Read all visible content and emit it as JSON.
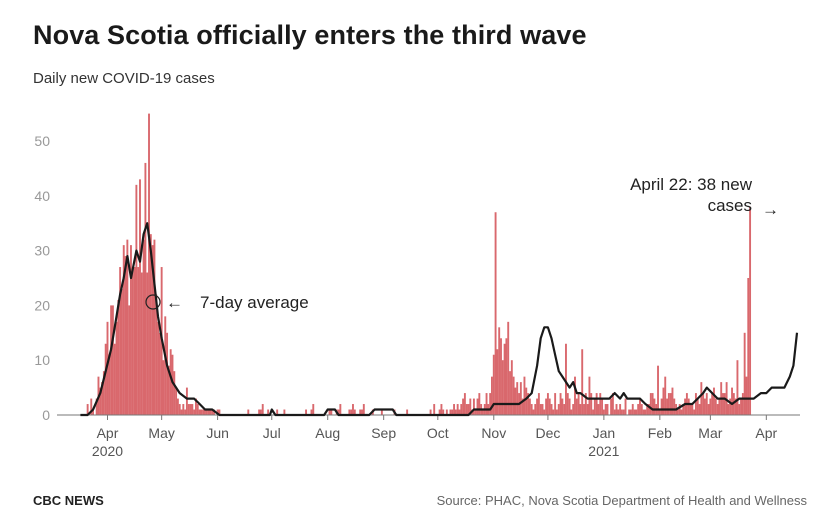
{
  "title": "Nova Scotia officially enters the third wave",
  "subtitle": "Daily new COVID-19 cases",
  "footer": {
    "brand": "CBC NEWS",
    "source": "Source: PHAC, Nova Scotia Department of Health and Wellness"
  },
  "colors": {
    "bar": "#d9686d",
    "line": "#1a1a1a"
  },
  "chart_data": {
    "type": "bar",
    "title": "Nova Scotia officially enters the third wave",
    "subtitle": "Daily new COVID-19 cases",
    "ylim": [
      0,
      55
    ],
    "yticks": [
      0,
      10,
      20,
      30,
      40,
      50
    ],
    "grid": false,
    "x_range_days": [
      -20,
      402
    ],
    "month_ticks": [
      {
        "label": "Apr",
        "day": 0,
        "year": "2020"
      },
      {
        "label": "May",
        "day": 30
      },
      {
        "label": "Jun",
        "day": 61
      },
      {
        "label": "Jul",
        "day": 91
      },
      {
        "label": "Aug",
        "day": 122
      },
      {
        "label": "Sep",
        "day": 153
      },
      {
        "label": "Oct",
        "day": 183
      },
      {
        "label": "Nov",
        "day": 214
      },
      {
        "label": "Dec",
        "day": 244
      },
      {
        "label": "Jan",
        "day": 275,
        "year": "2021"
      },
      {
        "label": "Feb",
        "day": 306
      },
      {
        "label": "Mar",
        "day": 334
      },
      {
        "label": "Apr",
        "day": 365
      }
    ],
    "series": [
      {
        "name": "Daily new cases",
        "kind": "bar",
        "start_day": -15,
        "values": [
          0,
          0,
          0,
          0,
          2,
          0,
          3,
          1,
          0,
          3,
          7,
          5,
          6,
          8,
          13,
          17,
          11,
          20,
          20,
          13,
          17,
          21,
          27,
          23,
          31,
          29,
          32,
          20,
          31,
          27,
          27,
          42,
          27,
          43,
          26,
          32,
          46,
          26,
          55,
          33,
          31,
          32,
          22,
          17,
          15,
          27,
          10,
          18,
          15,
          9,
          12,
          11,
          8,
          5,
          3,
          2,
          1,
          2,
          1,
          5,
          2,
          2,
          2,
          1,
          3,
          2,
          1,
          1,
          1,
          1,
          1,
          1,
          1,
          1,
          1,
          0,
          1,
          1,
          0,
          0,
          0,
          0,
          0,
          0,
          0,
          0,
          0,
          0,
          0,
          0,
          0,
          0,
          0,
          1,
          0,
          0,
          0,
          0,
          0,
          1,
          1,
          2,
          0,
          0,
          1,
          0,
          0,
          0,
          0,
          1,
          0,
          0,
          0,
          1,
          0,
          0,
          0,
          0,
          0,
          0,
          0,
          0,
          0,
          0,
          0,
          1,
          0,
          0,
          1,
          2,
          0,
          0,
          0,
          0,
          0,
          0,
          0,
          0,
          1,
          1,
          0,
          0,
          1,
          1,
          2,
          0,
          0,
          0,
          0,
          1,
          1,
          2,
          1,
          0,
          0,
          1,
          1,
          2,
          0,
          0,
          0,
          0,
          1,
          0,
          0,
          0,
          0,
          1,
          0,
          0,
          0,
          0,
          0,
          0,
          1,
          0,
          0,
          0,
          0,
          0,
          0,
          1,
          0,
          0,
          0,
          0,
          0,
          0,
          0,
          0,
          0,
          0,
          0,
          0,
          1,
          0,
          2,
          0,
          0,
          1,
          2,
          1,
          0,
          1,
          0,
          1,
          1,
          2,
          1,
          2,
          1,
          2,
          3,
          4,
          2,
          2,
          3,
          1,
          3,
          1,
          3,
          4,
          2,
          1,
          2,
          4,
          2,
          4,
          7,
          11,
          37,
          12,
          16,
          14,
          10,
          13,
          14,
          17,
          8,
          10,
          7,
          5,
          6,
          4,
          6,
          3,
          7,
          5,
          4,
          3,
          2,
          1,
          2,
          3,
          4,
          2,
          2,
          1,
          3,
          4,
          3,
          2,
          1,
          4,
          1,
          2,
          4,
          3,
          2,
          13,
          4,
          3,
          1,
          2,
          7,
          3,
          4,
          2,
          12,
          2,
          4,
          2,
          7,
          4,
          1,
          3,
          4,
          2,
          4,
          3,
          1,
          2,
          2,
          0,
          3,
          4,
          1,
          2,
          1,
          2,
          1,
          1,
          3,
          0,
          1,
          1,
          2,
          1,
          1,
          2,
          3,
          2,
          1,
          1,
          2,
          2,
          4,
          4,
          3,
          2,
          9,
          1,
          3,
          5,
          7,
          3,
          4,
          4,
          5,
          3,
          2,
          1,
          2,
          1,
          2,
          3,
          4,
          3,
          2,
          2,
          1,
          4,
          3,
          2,
          6,
          4,
          3,
          4,
          2,
          3,
          4,
          5,
          3,
          2,
          3,
          6,
          4,
          4,
          6,
          2,
          3,
          5,
          4,
          3,
          10,
          2,
          3,
          4,
          15,
          7,
          25,
          38
        ]
      },
      {
        "name": "7-day average",
        "kind": "line",
        "points": [
          [
            -15,
            0
          ],
          [
            -11,
            0
          ],
          [
            -8,
            1
          ],
          [
            -4,
            4
          ],
          [
            -1,
            8
          ],
          [
            2,
            12
          ],
          [
            5,
            18
          ],
          [
            7,
            22
          ],
          [
            9,
            25
          ],
          [
            11,
            29
          ],
          [
            13,
            25
          ],
          [
            16,
            30
          ],
          [
            18,
            28
          ],
          [
            20,
            33
          ],
          [
            22,
            35
          ],
          [
            24,
            30
          ],
          [
            26,
            24
          ],
          [
            28,
            18
          ],
          [
            30,
            14
          ],
          [
            33,
            9
          ],
          [
            36,
            6
          ],
          [
            40,
            4
          ],
          [
            44,
            3
          ],
          [
            48,
            3
          ],
          [
            51,
            2
          ],
          [
            54,
            1
          ],
          [
            58,
            1
          ],
          [
            62,
            0
          ],
          [
            66,
            0
          ],
          [
            90,
            0
          ],
          [
            91,
            1
          ],
          [
            93,
            0
          ],
          [
            120,
            0
          ],
          [
            122,
            1
          ],
          [
            126,
            1
          ],
          [
            128,
            0
          ],
          [
            145,
            0
          ],
          [
            148,
            1
          ],
          [
            158,
            1
          ],
          [
            160,
            0
          ],
          [
            190,
            0
          ],
          [
            200,
            0
          ],
          [
            203,
            1
          ],
          [
            208,
            1
          ],
          [
            212,
            1
          ],
          [
            214,
            2
          ],
          [
            220,
            2
          ],
          [
            225,
            2
          ],
          [
            228,
            2
          ],
          [
            232,
            3
          ],
          [
            235,
            4
          ],
          [
            238,
            9
          ],
          [
            240,
            14
          ],
          [
            242,
            16
          ],
          [
            244,
            16
          ],
          [
            246,
            14
          ],
          [
            248,
            11
          ],
          [
            250,
            8
          ],
          [
            252,
            7
          ],
          [
            254,
            6
          ],
          [
            256,
            5
          ],
          [
            258,
            6
          ],
          [
            260,
            4
          ],
          [
            262,
            4
          ],
          [
            266,
            3
          ],
          [
            270,
            3
          ],
          [
            274,
            3
          ],
          [
            278,
            3
          ],
          [
            281,
            4
          ],
          [
            284,
            3
          ],
          [
            286,
            4
          ],
          [
            288,
            3
          ],
          [
            292,
            3
          ],
          [
            295,
            3
          ],
          [
            298,
            2
          ],
          [
            302,
            1
          ],
          [
            305,
            1
          ],
          [
            310,
            1
          ],
          [
            315,
            1
          ],
          [
            320,
            2
          ],
          [
            324,
            2
          ],
          [
            327,
            3
          ],
          [
            330,
            4
          ],
          [
            332,
            5
          ],
          [
            335,
            4
          ],
          [
            338,
            3
          ],
          [
            342,
            3
          ],
          [
            346,
            2
          ],
          [
            350,
            3
          ],
          [
            354,
            3
          ],
          [
            358,
            3
          ],
          [
            362,
            4
          ],
          [
            365,
            4
          ],
          [
            368,
            5
          ],
          [
            372,
            5
          ],
          [
            375,
            5
          ],
          [
            378,
            7
          ],
          [
            380,
            9
          ],
          [
            382,
            15
          ]
        ]
      }
    ],
    "annotations": {
      "average_label": "7-day average",
      "latest_prefix": "April 22: ",
      "latest_bold": "38 new",
      "latest_line2": "cases"
    }
  }
}
